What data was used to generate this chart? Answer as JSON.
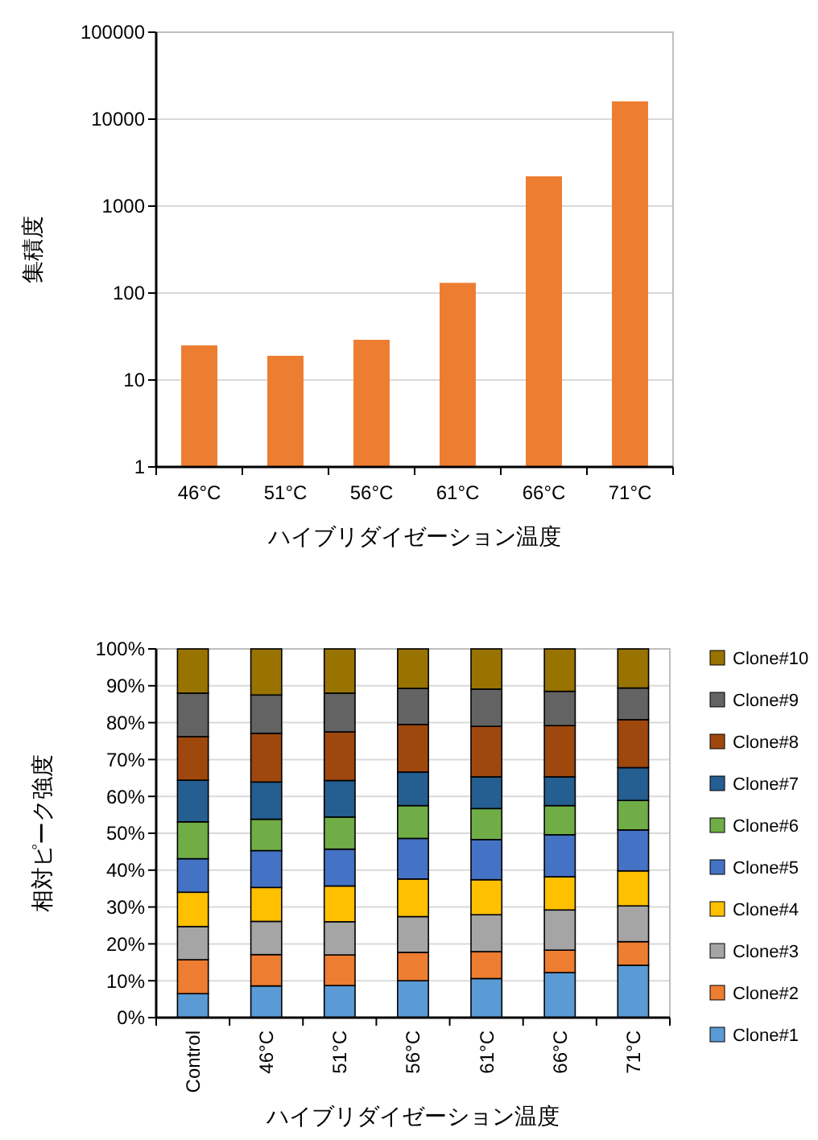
{
  "chart_data": [
    {
      "type": "bar",
      "ylabel": "集積度",
      "xlabel": "ハイブリダイゼーション温度",
      "categories": [
        "46°C",
        "51°C",
        "56°C",
        "61°C",
        "66°C",
        "71°C"
      ],
      "values": [
        24,
        18,
        28,
        130,
        2200,
        16000
      ],
      "color": "#ed7d31",
      "log": true,
      "ylim": [
        1,
        100000
      ],
      "yticks": [
        1,
        10,
        100,
        1000,
        10000,
        100000
      ],
      "grid": "y",
      "legend": false
    },
    {
      "type": "bar",
      "stacked": true,
      "ylabel": "相対ピーク強度",
      "xlabel": "ハイブリダイゼーション温度",
      "categories": [
        "Control",
        "46°C",
        "51°C",
        "56°C",
        "61°C",
        "66°C",
        "71°C"
      ],
      "ylim": [
        0,
        100
      ],
      "yticks": [
        {
          "value": 0,
          "label": "0%"
        },
        {
          "value": 10,
          "label": "10%"
        },
        {
          "value": 20,
          "label": "20%"
        },
        {
          "value": 30,
          "label": "30%"
        },
        {
          "value": 40,
          "label": "40%"
        },
        {
          "value": 50,
          "label": "50%"
        },
        {
          "value": 60,
          "label": "60%"
        },
        {
          "value": 70,
          "label": "70%"
        },
        {
          "value": 80,
          "label": "80%"
        },
        {
          "value": 90,
          "label": "90%"
        },
        {
          "value": 100,
          "label": "100%"
        }
      ],
      "grid": "y",
      "legend": "right",
      "series": [
        {
          "name": "Clone#1",
          "color": "#5b9bd5",
          "values": [
            6.5,
            8.6,
            8.7,
            10.0,
            10.6,
            12.2,
            14.2
          ]
        },
        {
          "name": "Clone#2",
          "color": "#ed7d31",
          "values": [
            9.2,
            8.5,
            8.3,
            7.7,
            7.3,
            6.1,
            6.4
          ]
        },
        {
          "name": "Clone#3",
          "color": "#a5a5a5",
          "values": [
            9.0,
            9.0,
            9.0,
            9.7,
            10.0,
            10.9,
            9.7
          ]
        },
        {
          "name": "Clone#4",
          "color": "#ffc000",
          "values": [
            9.3,
            9.2,
            9.7,
            10.2,
            9.5,
            9.0,
            9.5
          ]
        },
        {
          "name": "Clone#5",
          "color": "#4472c4",
          "values": [
            9.1,
            10.0,
            10.0,
            11.0,
            10.9,
            11.4,
            11.1
          ]
        },
        {
          "name": "Clone#6",
          "color": "#70ad47",
          "values": [
            10.0,
            8.5,
            8.7,
            8.9,
            8.4,
            7.9,
            8.0
          ]
        },
        {
          "name": "Clone#7",
          "color": "#255e91",
          "values": [
            11.3,
            10.1,
            9.9,
            9.1,
            8.6,
            7.8,
            8.9
          ]
        },
        {
          "name": "Clone#8",
          "color": "#9e480e",
          "values": [
            11.8,
            13.2,
            13.2,
            12.9,
            13.7,
            13.9,
            13.0
          ]
        },
        {
          "name": "Clone#9",
          "color": "#636363",
          "values": [
            11.8,
            10.4,
            10.5,
            9.8,
            10.1,
            9.3,
            8.6
          ]
        },
        {
          "name": "Clone#10",
          "color": "#997300",
          "values": [
            12.0,
            12.5,
            12.0,
            10.7,
            10.9,
            11.5,
            10.6
          ]
        }
      ]
    }
  ]
}
